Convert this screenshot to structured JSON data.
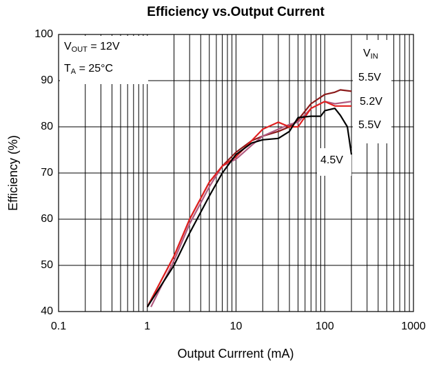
{
  "chart_data": {
    "type": "line",
    "title": "Efficiency vs.Output Current",
    "x_label": "Output Currrent (mA)",
    "y_label": "Efficiency (%)",
    "log_x": true,
    "grid": true,
    "minor_grid": true,
    "xlim": [
      0.1,
      1000
    ],
    "ylim": [
      40,
      100
    ],
    "xticks": [
      0.1,
      1,
      10,
      100,
      1000
    ],
    "yticks": [
      40,
      50,
      60,
      70,
      80,
      90,
      100
    ],
    "annotations": [
      [
        "V",
        "OUT",
        " = 12V"
      ],
      [
        "T",
        "A",
        " = 25°C"
      ],
      [
        "V",
        "IN"
      ]
    ],
    "series": [
      {
        "name": "5.5V",
        "color": "#8b1a1a",
        "x": [
          1,
          2,
          3,
          5,
          7,
          10,
          15,
          20,
          30,
          40,
          50,
          70,
          100,
          130,
          150,
          200
        ],
        "values": [
          41,
          52,
          60,
          68,
          71.5,
          74.5,
          77,
          78,
          79,
          80,
          81.5,
          85,
          87,
          87.5,
          88,
          87.7
        ]
      },
      {
        "name": "5.2V",
        "color": "#b05a80",
        "x": [
          1.1,
          2,
          3,
          5,
          7,
          10,
          15,
          20,
          30,
          40,
          50,
          70,
          100,
          130,
          200
        ],
        "values": [
          41,
          51,
          59,
          67,
          71.5,
          73,
          76,
          78,
          79.5,
          80.5,
          81,
          84,
          85.5,
          85,
          85.5
        ]
      },
      {
        "name": "5.5V",
        "color": "#e02020",
        "x": [
          1,
          2,
          3,
          5,
          7,
          10,
          15,
          20,
          30,
          40,
          50,
          70,
          100,
          130,
          200
        ],
        "values": [
          41,
          52,
          60,
          68,
          71.5,
          73.5,
          77,
          79.5,
          81,
          80,
          80,
          84,
          85.5,
          84.5,
          84.5
        ]
      },
      {
        "name": "4.5V",
        "color": "#000000",
        "x": [
          1,
          2,
          3,
          5,
          7,
          10,
          15,
          20,
          30,
          40,
          50,
          70,
          90,
          100,
          130,
          150,
          180,
          200
        ],
        "values": [
          41,
          50,
          57,
          65,
          70,
          74,
          76.5,
          77.2,
          77.5,
          79,
          82,
          82.3,
          82.3,
          83.5,
          84,
          82.5,
          80,
          74
        ]
      }
    ]
  }
}
